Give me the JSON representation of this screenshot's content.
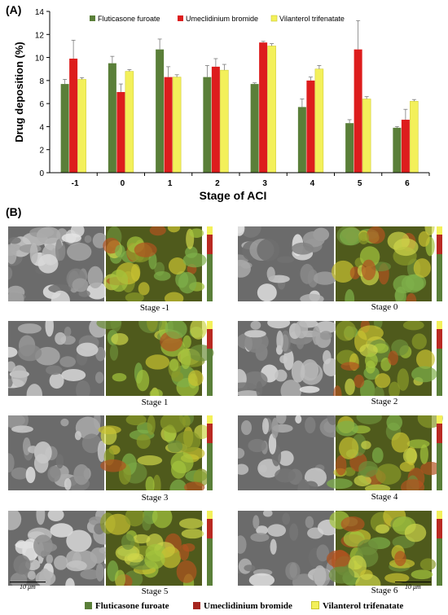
{
  "panel_a_label": "(A)",
  "panel_b_label": "(B)",
  "chart_data": {
    "type": "bar",
    "categories": [
      "-1",
      "0",
      "1",
      "2",
      "3",
      "4",
      "5",
      "6"
    ],
    "series": [
      {
        "name": "Fluticasone furoate",
        "color": "#5a7f39",
        "values": [
          7.7,
          9.5,
          10.7,
          8.3,
          7.7,
          5.7,
          4.3,
          3.9
        ],
        "errors": [
          0.4,
          0.6,
          0.9,
          1.0,
          0.1,
          0.7,
          0.3,
          0.1
        ]
      },
      {
        "name": "Umeclidinium bromide",
        "color": "#dd1d1d",
        "values": [
          9.9,
          7.0,
          8.3,
          9.2,
          11.3,
          8.0,
          10.7,
          4.6
        ],
        "errors": [
          1.6,
          0.7,
          0.9,
          0.7,
          0.1,
          0.3,
          2.5,
          0.9
        ]
      },
      {
        "name": "Vilanterol trifenatate",
        "color": "#f3f05a",
        "values": [
          8.1,
          8.8,
          8.3,
          8.9,
          11.0,
          9.0,
          6.4,
          6.2
        ],
        "errors": [
          0.15,
          0.15,
          0.2,
          0.5,
          0.2,
          0.3,
          0.2,
          0.15
        ]
      }
    ],
    "xlabel": "Stage of ACI",
    "ylabel": "Drug deposition (%)",
    "ylim": [
      0,
      14
    ],
    "yticks": [
      "0",
      "2",
      "4",
      "6",
      "8",
      "10",
      "12",
      "14"
    ],
    "legend_placement": "top",
    "grid": false
  },
  "panel_b": {
    "tiles": [
      {
        "caption": "Stage -1"
      },
      {
        "caption": "Stage 0"
      },
      {
        "caption": "Stage 1"
      },
      {
        "caption": "Stage 2"
      },
      {
        "caption": "Stage 3"
      },
      {
        "caption": "Stage 4"
      },
      {
        "caption": "Stage 5"
      },
      {
        "caption": "Stage 6"
      }
    ],
    "scale_left": "10 μm",
    "scale_right": "10 μm",
    "legend": [
      {
        "label": "Fluticasone furoate",
        "color": "#5a7f39"
      },
      {
        "label": "Umeclidinium bromide",
        "color": "#a6261f"
      },
      {
        "label": "Vilanterol trifenatate",
        "color": "#f3f05a"
      }
    ]
  }
}
